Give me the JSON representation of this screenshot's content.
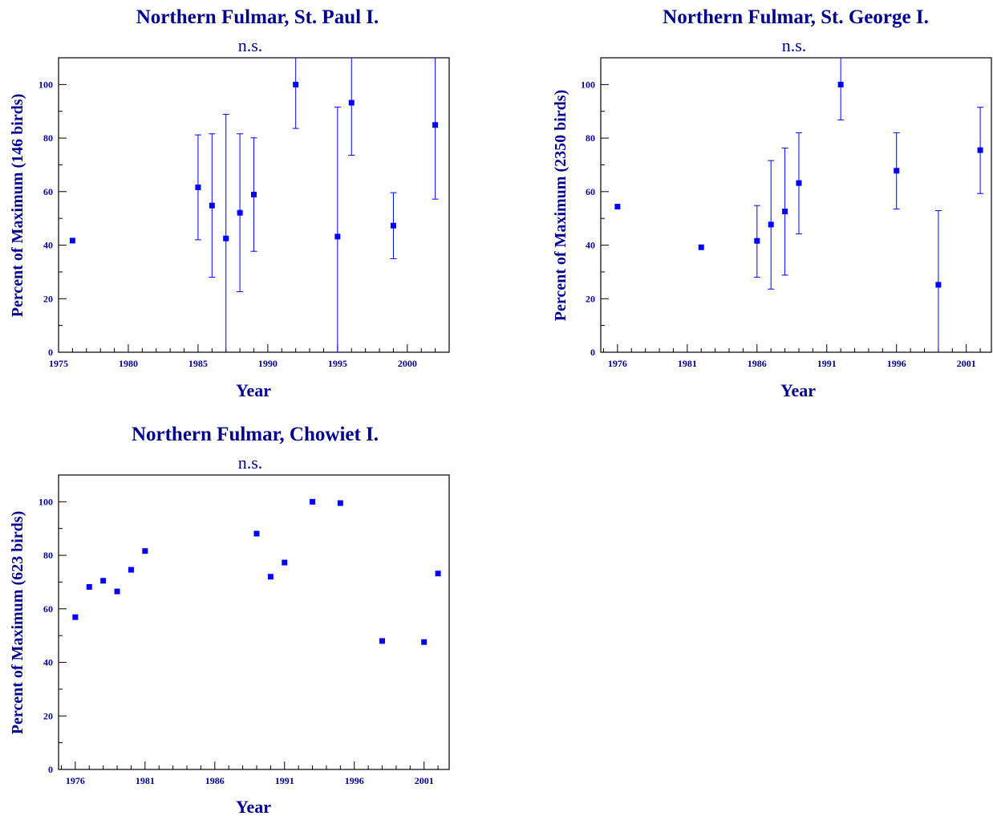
{
  "colors": {
    "text": "#00008b",
    "marker": "#0000ff",
    "axis": "#000000"
  },
  "chart_data": [
    {
      "type": "scatter",
      "title": "Northern Fulmar, St. Paul I.",
      "subtitle": "n.s.",
      "xlabel": "Year",
      "ylabel": "Percent of Maximum (146 birds)",
      "xlim": [
        1975,
        2003
      ],
      "ylim": [
        0,
        110
      ],
      "xticks": [
        "1975",
        "1980",
        "1985",
        "1990",
        "1995",
        "2000"
      ],
      "xtick_values": [
        1975,
        1980,
        1985,
        1990,
        1995,
        2000
      ],
      "yticks": [
        "0",
        "20",
        "40",
        "60",
        "80",
        "100"
      ],
      "ytick_values": [
        0,
        20,
        40,
        60,
        80,
        100
      ],
      "grid": false,
      "legend": "none",
      "error_bars": true,
      "points": [
        {
          "x": 1976,
          "y": 41.7
        },
        {
          "x": 1985,
          "y": 61.6,
          "lo": 42.0,
          "hi": 81.2
        },
        {
          "x": 1986,
          "y": 54.8,
          "lo": 28.0,
          "hi": 81.6
        },
        {
          "x": 1987,
          "y": 42.5,
          "lo": 0,
          "hi": 88.9
        },
        {
          "x": 1988,
          "y": 52.1,
          "lo": 22.6,
          "hi": 81.6
        },
        {
          "x": 1989,
          "y": 58.9,
          "lo": 37.7,
          "hi": 80.1
        },
        {
          "x": 1992,
          "y": 100.0,
          "lo": 83.6,
          "hi": 110
        },
        {
          "x": 1995,
          "y": 43.2,
          "lo": 0,
          "hi": 91.6
        },
        {
          "x": 1996,
          "y": 93.2,
          "lo": 73.6,
          "hi": 110
        },
        {
          "x": 1999,
          "y": 47.3,
          "lo": 34.9,
          "hi": 59.6
        },
        {
          "x": 2002,
          "y": 84.9,
          "lo": 57.2,
          "hi": 110
        }
      ]
    },
    {
      "type": "scatter",
      "title": "Northern Fulmar, St. George I.",
      "subtitle": "n.s.",
      "xlabel": "Year",
      "ylabel": "Percent of Maximum (2350 birds)",
      "xlim": [
        1975,
        2003
      ],
      "ylim": [
        0,
        110
      ],
      "xticks": [
        "1976",
        "1981",
        "1986",
        "1991",
        "1996",
        "2001"
      ],
      "xtick_values": [
        1976,
        1981,
        1986,
        1991,
        1996,
        2001
      ],
      "yticks": [
        "0",
        "20",
        "40",
        "60",
        "80",
        "100"
      ],
      "ytick_values": [
        0,
        20,
        40,
        60,
        80,
        100
      ],
      "grid": false,
      "legend": "none",
      "error_bars": true,
      "points": [
        {
          "x": 1976,
          "y": 54.4
        },
        {
          "x": 1982,
          "y": 39.2
        },
        {
          "x": 1986,
          "y": 41.6,
          "lo": 28.0,
          "hi": 54.8
        },
        {
          "x": 1987,
          "y": 47.7,
          "lo": 23.6,
          "hi": 71.6
        },
        {
          "x": 1988,
          "y": 52.6,
          "lo": 28.8,
          "hi": 76.3
        },
        {
          "x": 1989,
          "y": 63.2,
          "lo": 44.2,
          "hi": 82.0
        },
        {
          "x": 1992,
          "y": 100.0,
          "lo": 86.8,
          "hi": 110
        },
        {
          "x": 1996,
          "y": 67.8,
          "lo": 53.5,
          "hi": 82.0
        },
        {
          "x": 1999,
          "y": 25.2,
          "lo": 0,
          "hi": 52.9
        },
        {
          "x": 2002,
          "y": 75.5,
          "lo": 59.3,
          "hi": 91.5
        }
      ]
    },
    {
      "type": "scatter",
      "title": "Northern Fulmar, Chowiet I.",
      "subtitle": "n.s.",
      "xlabel": "Year",
      "ylabel": "Percent of Maximum (623 birds)",
      "xlim": [
        1975,
        2003
      ],
      "ylim": [
        0,
        110
      ],
      "xticks": [
        "1976",
        "1981",
        "1986",
        "1991",
        "1996",
        "2001"
      ],
      "xtick_values": [
        1976,
        1981,
        1986,
        1991,
        1996,
        2001
      ],
      "yticks": [
        "0",
        "20",
        "40",
        "60",
        "80",
        "100"
      ],
      "ytick_values": [
        0,
        20,
        40,
        60,
        80,
        100
      ],
      "grid": false,
      "legend": "none",
      "error_bars": false,
      "points": [
        {
          "x": 1976,
          "y": 56.9
        },
        {
          "x": 1977,
          "y": 68.2
        },
        {
          "x": 1978,
          "y": 70.5
        },
        {
          "x": 1979,
          "y": 66.5
        },
        {
          "x": 1980,
          "y": 74.6
        },
        {
          "x": 1981,
          "y": 81.6
        },
        {
          "x": 1989,
          "y": 88.1
        },
        {
          "x": 1990,
          "y": 72.0
        },
        {
          "x": 1991,
          "y": 77.3
        },
        {
          "x": 1993,
          "y": 100.0
        },
        {
          "x": 1995,
          "y": 99.5
        },
        {
          "x": 1998,
          "y": 48.0
        },
        {
          "x": 2001,
          "y": 47.6
        },
        {
          "x": 2002,
          "y": 73.2
        }
      ]
    }
  ]
}
